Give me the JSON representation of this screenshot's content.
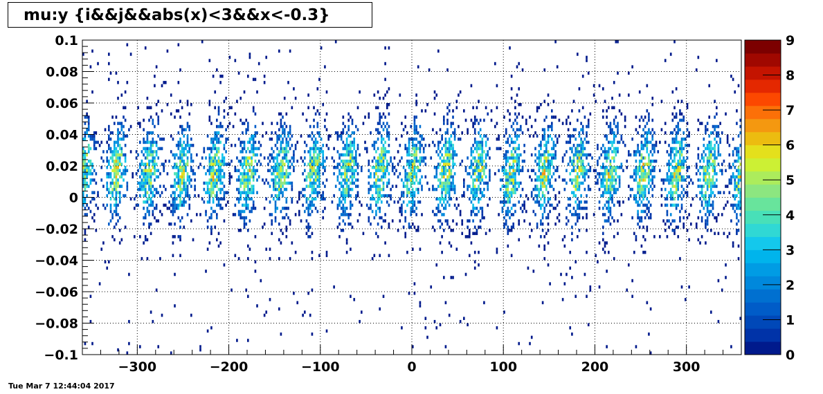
{
  "timestamp": "Tue Mar  7 12:44:04 2017",
  "chart_data": {
    "type": "heatmap",
    "title": "mu:y {i&&j&&abs(x)<3&&x<-0.3}",
    "xlabel": "",
    "ylabel": "",
    "xlim": [
      -360,
      360
    ],
    "ylim": [
      -0.1,
      0.1
    ],
    "zlim": [
      0,
      9
    ],
    "grid": true,
    "x_ticks": [
      -300,
      -200,
      -100,
      0,
      100,
      200,
      300
    ],
    "x_tick_labels": [
      "−300",
      "−200",
      "−100",
      "0",
      "100",
      "200",
      "300"
    ],
    "y_ticks": [
      0.1,
      0.08,
      0.06,
      0.04,
      0.02,
      0,
      -0.02,
      -0.04,
      -0.06,
      -0.08,
      -0.1
    ],
    "y_tick_labels": [
      "0.1",
      "0.08",
      "0.06",
      "0.04",
      "0.02",
      "0",
      "−0.02",
      "−0.04",
      "−0.06",
      "−0.08",
      "−0.1"
    ],
    "z_ticks": [
      0,
      1,
      2,
      3,
      4,
      5,
      6,
      7,
      8,
      9
    ],
    "z_tick_labels": [
      "0",
      "1",
      "2",
      "3",
      "4",
      "5",
      "6",
      "7",
      "8",
      "9"
    ],
    "palette": [
      "#001a8c",
      "#0033a8",
      "#0048b8",
      "#005cc8",
      "#0070d0",
      "#0088dc",
      "#009ce4",
      "#00b4ec",
      "#14c8ec",
      "#30d8d4",
      "#48e0b8",
      "#68e49c",
      "#8ce680",
      "#acec5c",
      "#ccf034",
      "#e4e01c",
      "#ecbc10",
      "#f49810",
      "#fc7008",
      "#fc4800",
      "#e42800",
      "#c41400",
      "#a00800",
      "#7c0000"
    ],
    "density_model": {
      "x_bin_width": 2,
      "y_bin_width": 0.002,
      "band_center_y": 0.015,
      "band_halfwidth_y": 0.035,
      "oscillation_period_x": 36,
      "peak_z": 8
    }
  }
}
